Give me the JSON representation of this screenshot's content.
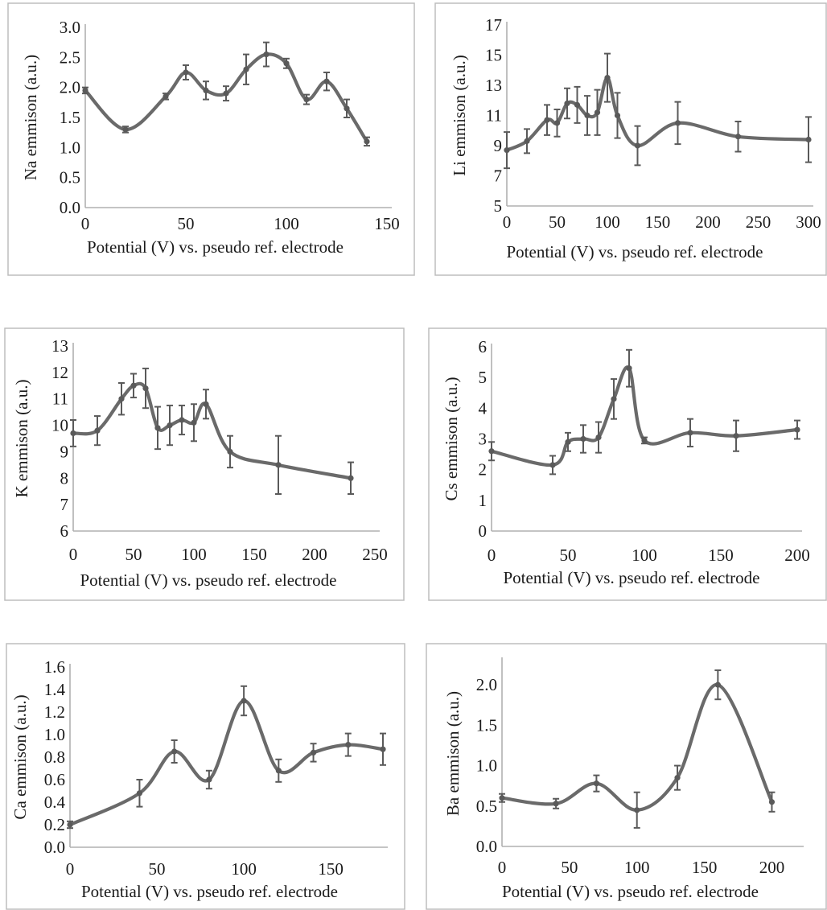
{
  "chart_data": [
    {
      "type": "line",
      "xlabel": "Potential (V) vs. pseudo ref. electrode",
      "ylabel": "Na emmison (a.u.)",
      "xlim": [
        0,
        150
      ],
      "ylim": [
        0,
        3
      ],
      "xticks": [
        "0",
        "50",
        "100",
        "150"
      ],
      "yticks": [
        "0.0",
        "0.5",
        "1.0",
        "1.5",
        "2.0",
        "2.5",
        "3.0"
      ],
      "grid": false,
      "series": [
        {
          "x": [
            0,
            20,
            40,
            50,
            60,
            70,
            80,
            90,
            100,
            110,
            120,
            130,
            140
          ],
          "values": [
            1.95,
            1.3,
            1.85,
            2.25,
            1.95,
            1.9,
            2.3,
            2.55,
            2.4,
            1.8,
            2.1,
            1.65,
            1.1
          ],
          "error": [
            0.05,
            0.05,
            0.05,
            0.12,
            0.15,
            0.12,
            0.25,
            0.2,
            0.08,
            0.08,
            0.15,
            0.15,
            0.07
          ]
        }
      ]
    },
    {
      "type": "line",
      "xlabel": "Potential (V) vs. pseudo ref. electrode",
      "ylabel": "Li emmison (a.u.)",
      "xlim": [
        0,
        300
      ],
      "ylim": [
        5,
        17
      ],
      "xticks": [
        "0",
        "50",
        "100",
        "150",
        "200",
        "250",
        "300"
      ],
      "yticks": [
        "5",
        "7",
        "9",
        "11",
        "13",
        "15",
        "17"
      ],
      "grid": false,
      "series": [
        {
          "x": [
            0,
            20,
            40,
            50,
            60,
            70,
            80,
            90,
            100,
            110,
            130,
            170,
            230,
            300
          ],
          "values": [
            8.7,
            9.3,
            10.7,
            10.5,
            11.8,
            11.7,
            11.0,
            11.2,
            13.5,
            11.0,
            9.0,
            10.5,
            9.6,
            9.4
          ],
          "error": [
            1.2,
            0.8,
            1.0,
            0.9,
            1.0,
            1.2,
            1.3,
            1.5,
            1.6,
            1.5,
            1.3,
            1.4,
            1.0,
            1.5
          ]
        }
      ]
    },
    {
      "type": "line",
      "xlabel": "Potential (V) vs. pseudo ref. electrode",
      "ylabel": "K emmison (a.u.)",
      "xlim": [
        0,
        250
      ],
      "ylim": [
        6,
        13
      ],
      "xticks": [
        "0",
        "50",
        "100",
        "150",
        "200",
        "250"
      ],
      "yticks": [
        "6",
        "7",
        "8",
        "9",
        "10",
        "11",
        "12",
        "13"
      ],
      "grid": false,
      "series": [
        {
          "x": [
            0,
            20,
            40,
            50,
            60,
            70,
            80,
            90,
            100,
            110,
            130,
            170,
            230
          ],
          "values": [
            9.7,
            9.8,
            11.0,
            11.5,
            11.4,
            9.9,
            10.0,
            10.2,
            10.1,
            10.8,
            9.0,
            8.5,
            8.0
          ],
          "error": [
            0.5,
            0.55,
            0.6,
            0.45,
            0.75,
            0.8,
            0.75,
            0.55,
            0.7,
            0.55,
            0.6,
            1.1,
            0.6
          ]
        }
      ]
    },
    {
      "type": "line",
      "xlabel": "Potential (V) vs. pseudo ref. electrode",
      "ylabel": "Cs emmison (a.u.)",
      "xlim": [
        0,
        200
      ],
      "ylim": [
        0,
        6
      ],
      "xticks": [
        "0",
        "50",
        "100",
        "150",
        "200"
      ],
      "yticks": [
        "0",
        "1",
        "2",
        "3",
        "4",
        "5",
        "6"
      ],
      "grid": false,
      "series": [
        {
          "x": [
            0,
            40,
            50,
            60,
            70,
            80,
            90,
            100,
            130,
            160,
            200
          ],
          "values": [
            2.6,
            2.15,
            2.9,
            3.0,
            3.05,
            4.3,
            5.3,
            2.95,
            3.2,
            3.1,
            3.3
          ],
          "error": [
            0.3,
            0.3,
            0.3,
            0.45,
            0.5,
            0.65,
            0.6,
            0.1,
            0.45,
            0.5,
            0.3
          ]
        }
      ]
    },
    {
      "type": "line",
      "xlabel": "Potential (V) vs. pseudo ref. electrode",
      "ylabel": "Ca emmison (a.u.)",
      "xlim": [
        0,
        180
      ],
      "ylim": [
        0,
        1.6
      ],
      "xticks": [
        "0",
        "50",
        "100",
        "150"
      ],
      "yticks": [
        "0.0",
        "0.2",
        "0.4",
        "0.6",
        "0.8",
        "1.0",
        "1.2",
        "1.4",
        "1.6"
      ],
      "grid": false,
      "series": [
        {
          "x": [
            0,
            40,
            60,
            80,
            100,
            120,
            140,
            160,
            180
          ],
          "values": [
            0.2,
            0.48,
            0.85,
            0.6,
            1.3,
            0.68,
            0.84,
            0.91,
            0.87
          ],
          "error": [
            0.03,
            0.12,
            0.1,
            0.08,
            0.13,
            0.1,
            0.08,
            0.1,
            0.14
          ]
        }
      ]
    },
    {
      "type": "line",
      "xlabel": "Potential (V) vs. pseudo ref. electrode",
      "ylabel": "Ba emmison (a.u.)",
      "xlim": [
        0,
        220
      ],
      "ylim": [
        0,
        2.3
      ],
      "xticks": [
        "0",
        "50",
        "100",
        "150",
        "200"
      ],
      "yticks": [
        "0.0",
        "0.5",
        "1.0",
        "1.5",
        "2.0"
      ],
      "grid": false,
      "series": [
        {
          "x": [
            0,
            40,
            70,
            100,
            130,
            160,
            200
          ],
          "values": [
            0.6,
            0.53,
            0.78,
            0.45,
            0.85,
            2.0,
            0.55
          ],
          "error": [
            0.05,
            0.06,
            0.1,
            0.22,
            0.15,
            0.18,
            0.12
          ]
        }
      ]
    }
  ]
}
